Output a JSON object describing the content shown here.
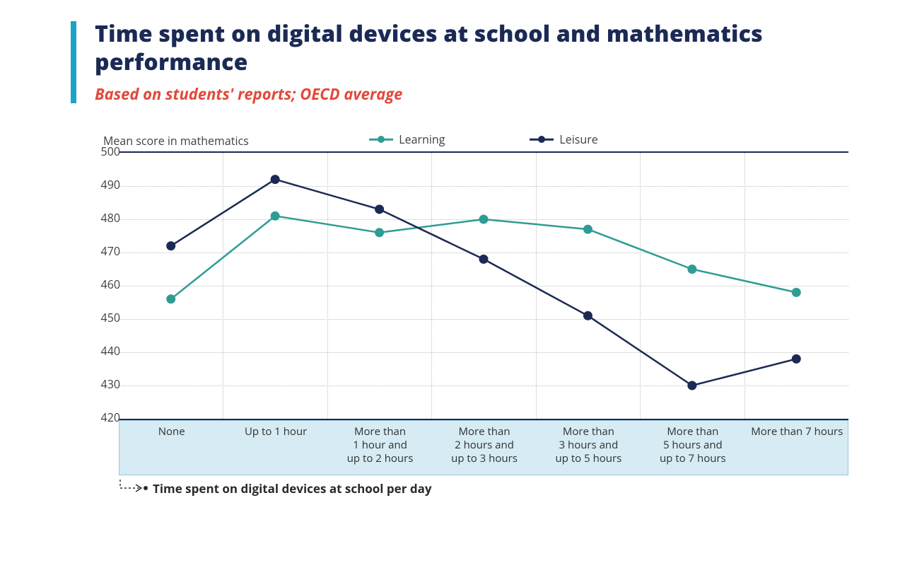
{
  "header": {
    "title": "Time spent on digital devices at school and mathematics performance",
    "subtitle": "Based on students' reports; OECD average",
    "title_color": "#1b2a55",
    "subtitle_color": "#e04a3a",
    "accent_bar_color": "#1aa5c8"
  },
  "chart": {
    "type": "line",
    "y_axis_title": "Mean score in mathematics",
    "x_axis_title": "Time spent on digital devices at school per day",
    "ylim": [
      420,
      500
    ],
    "ytick_step": 10,
    "yticks": [
      420,
      430,
      440,
      450,
      460,
      470,
      480,
      490,
      500
    ],
    "background_color": "#ffffff",
    "grid_color": "#bfbfbf",
    "axis_line_color": "#1b2a55",
    "x_band_background": "#d6ebf3",
    "x_band_border": "#9cc7d8",
    "marker_radius": 5.5,
    "marker_fill": "#ffffff",
    "line_width": 2.5,
    "label_fontsize": 16,
    "categories": [
      "None",
      "Up to 1 hour",
      "More than 1 hour and up to 2 hours",
      "More than 2 hours and up to 3 hours",
      "More than 3 hours and up to 5 hours",
      "More than 5 hours and up to 7 hours",
      "More than 7 hours"
    ],
    "series": [
      {
        "name": "Learning",
        "color": "#2f9c94",
        "values": [
          456,
          481,
          476,
          480,
          477,
          465,
          458
        ]
      },
      {
        "name": "Leisure",
        "color": "#1b2a55",
        "values": [
          472,
          492,
          483,
          468,
          451,
          430,
          438
        ]
      }
    ],
    "legend_position": "top"
  }
}
